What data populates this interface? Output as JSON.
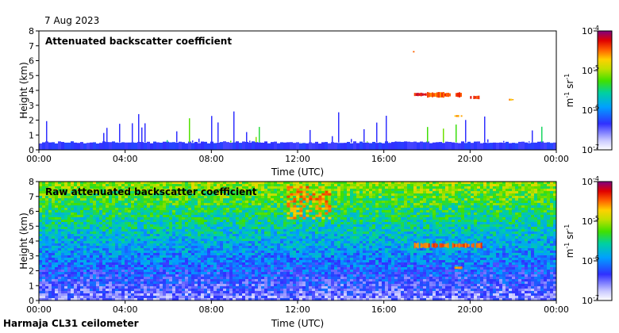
{
  "header": {
    "date": "7 Aug 2023"
  },
  "footer": {
    "instrument": "Harmaja CL31 ceilometer"
  },
  "chart_data": [
    {
      "type": "heatmap",
      "title": "Attenuated backscatter coefficient",
      "xlabel": "Time (UTC)",
      "ylabel": "Height (km)",
      "xticks": [
        "00:00",
        "04:00",
        "08:00",
        "12:00",
        "16:00",
        "20:00",
        "00:00"
      ],
      "xlim_hours": [
        0,
        24
      ],
      "yticks": [
        "0",
        "1",
        "2",
        "3",
        "4",
        "5",
        "6",
        "7",
        "8"
      ],
      "ylim": [
        0,
        8
      ],
      "colorbar": {
        "scale": "log",
        "range": [
          1e-07,
          0.0001
        ],
        "ticks": [
          "10-7",
          "10-6",
          "10-5",
          "10-4"
        ],
        "label": "m-1 sr-1"
      },
      "features": [
        {
          "type": "noise-layer",
          "from_hours": 0,
          "to_hours": 24,
          "height_km": [
            0,
            0.5
          ],
          "level": 0.05
        },
        {
          "type": "aerosol-spikes",
          "from_hours": 0,
          "to_hours": 24,
          "height_km": [
            0.5,
            2.6
          ],
          "level": 0.35
        },
        {
          "type": "cloud",
          "time_hours": [
            17.4,
            18.0
          ],
          "height_km": [
            3.6,
            3.85
          ],
          "level": 0.9
        },
        {
          "type": "cloud",
          "time_hours": [
            18.0,
            19.6
          ],
          "height_km": [
            3.5,
            3.9
          ],
          "level": 0.85
        },
        {
          "type": "cloud",
          "time_hours": [
            20.0,
            20.5
          ],
          "height_km": [
            3.4,
            3.65
          ],
          "level": 0.88
        },
        {
          "type": "cloud",
          "time_hours": [
            19.2,
            19.6
          ],
          "height_km": [
            2.2,
            2.35
          ],
          "level": 0.8
        },
        {
          "type": "cloud",
          "time_hours": [
            21.8,
            21.95
          ],
          "height_km": [
            3.3,
            3.45
          ],
          "level": 0.8
        },
        {
          "type": "cloud",
          "time_hours": [
            17.35,
            17.4
          ],
          "height_km": [
            6.55,
            6.65
          ],
          "level": 0.85
        }
      ]
    },
    {
      "type": "heatmap",
      "title": "Raw attenuated backscatter coefficient",
      "xlabel": "Time (UTC)",
      "ylabel": "Height (km)",
      "xticks": [
        "00:00",
        "04:00",
        "08:00",
        "12:00",
        "16:00",
        "20:00",
        "00:00"
      ],
      "xlim_hours": [
        0,
        24
      ],
      "yticks": [
        "0",
        "1",
        "2",
        "3",
        "4",
        "5",
        "6",
        "7",
        "8"
      ],
      "ylim": [
        0,
        8
      ],
      "colorbar": {
        "scale": "log",
        "range": [
          1e-07,
          0.0001
        ],
        "ticks": [
          "10-7",
          "10-6",
          "10-5",
          "10-4"
        ],
        "label": "m-1 sr-1"
      },
      "features": [
        {
          "type": "noise-gradient",
          "from_hours": 0,
          "to_hours": 24,
          "height_km": [
            0,
            8
          ],
          "level_bottom": 0.15,
          "level_top": 0.65
        },
        {
          "type": "noise-enhanced",
          "time_hours": [
            11.5,
            13.5
          ],
          "height_km": [
            5.5,
            7.7
          ],
          "level": 0.8
        },
        {
          "type": "cloud",
          "time_hours": [
            17.4,
            20.5
          ],
          "height_km": [
            3.5,
            3.9
          ],
          "level": 0.85
        },
        {
          "type": "cloud",
          "time_hours": [
            19.2,
            19.6
          ],
          "height_km": [
            2.1,
            2.3
          ],
          "level": 0.8
        }
      ]
    }
  ]
}
